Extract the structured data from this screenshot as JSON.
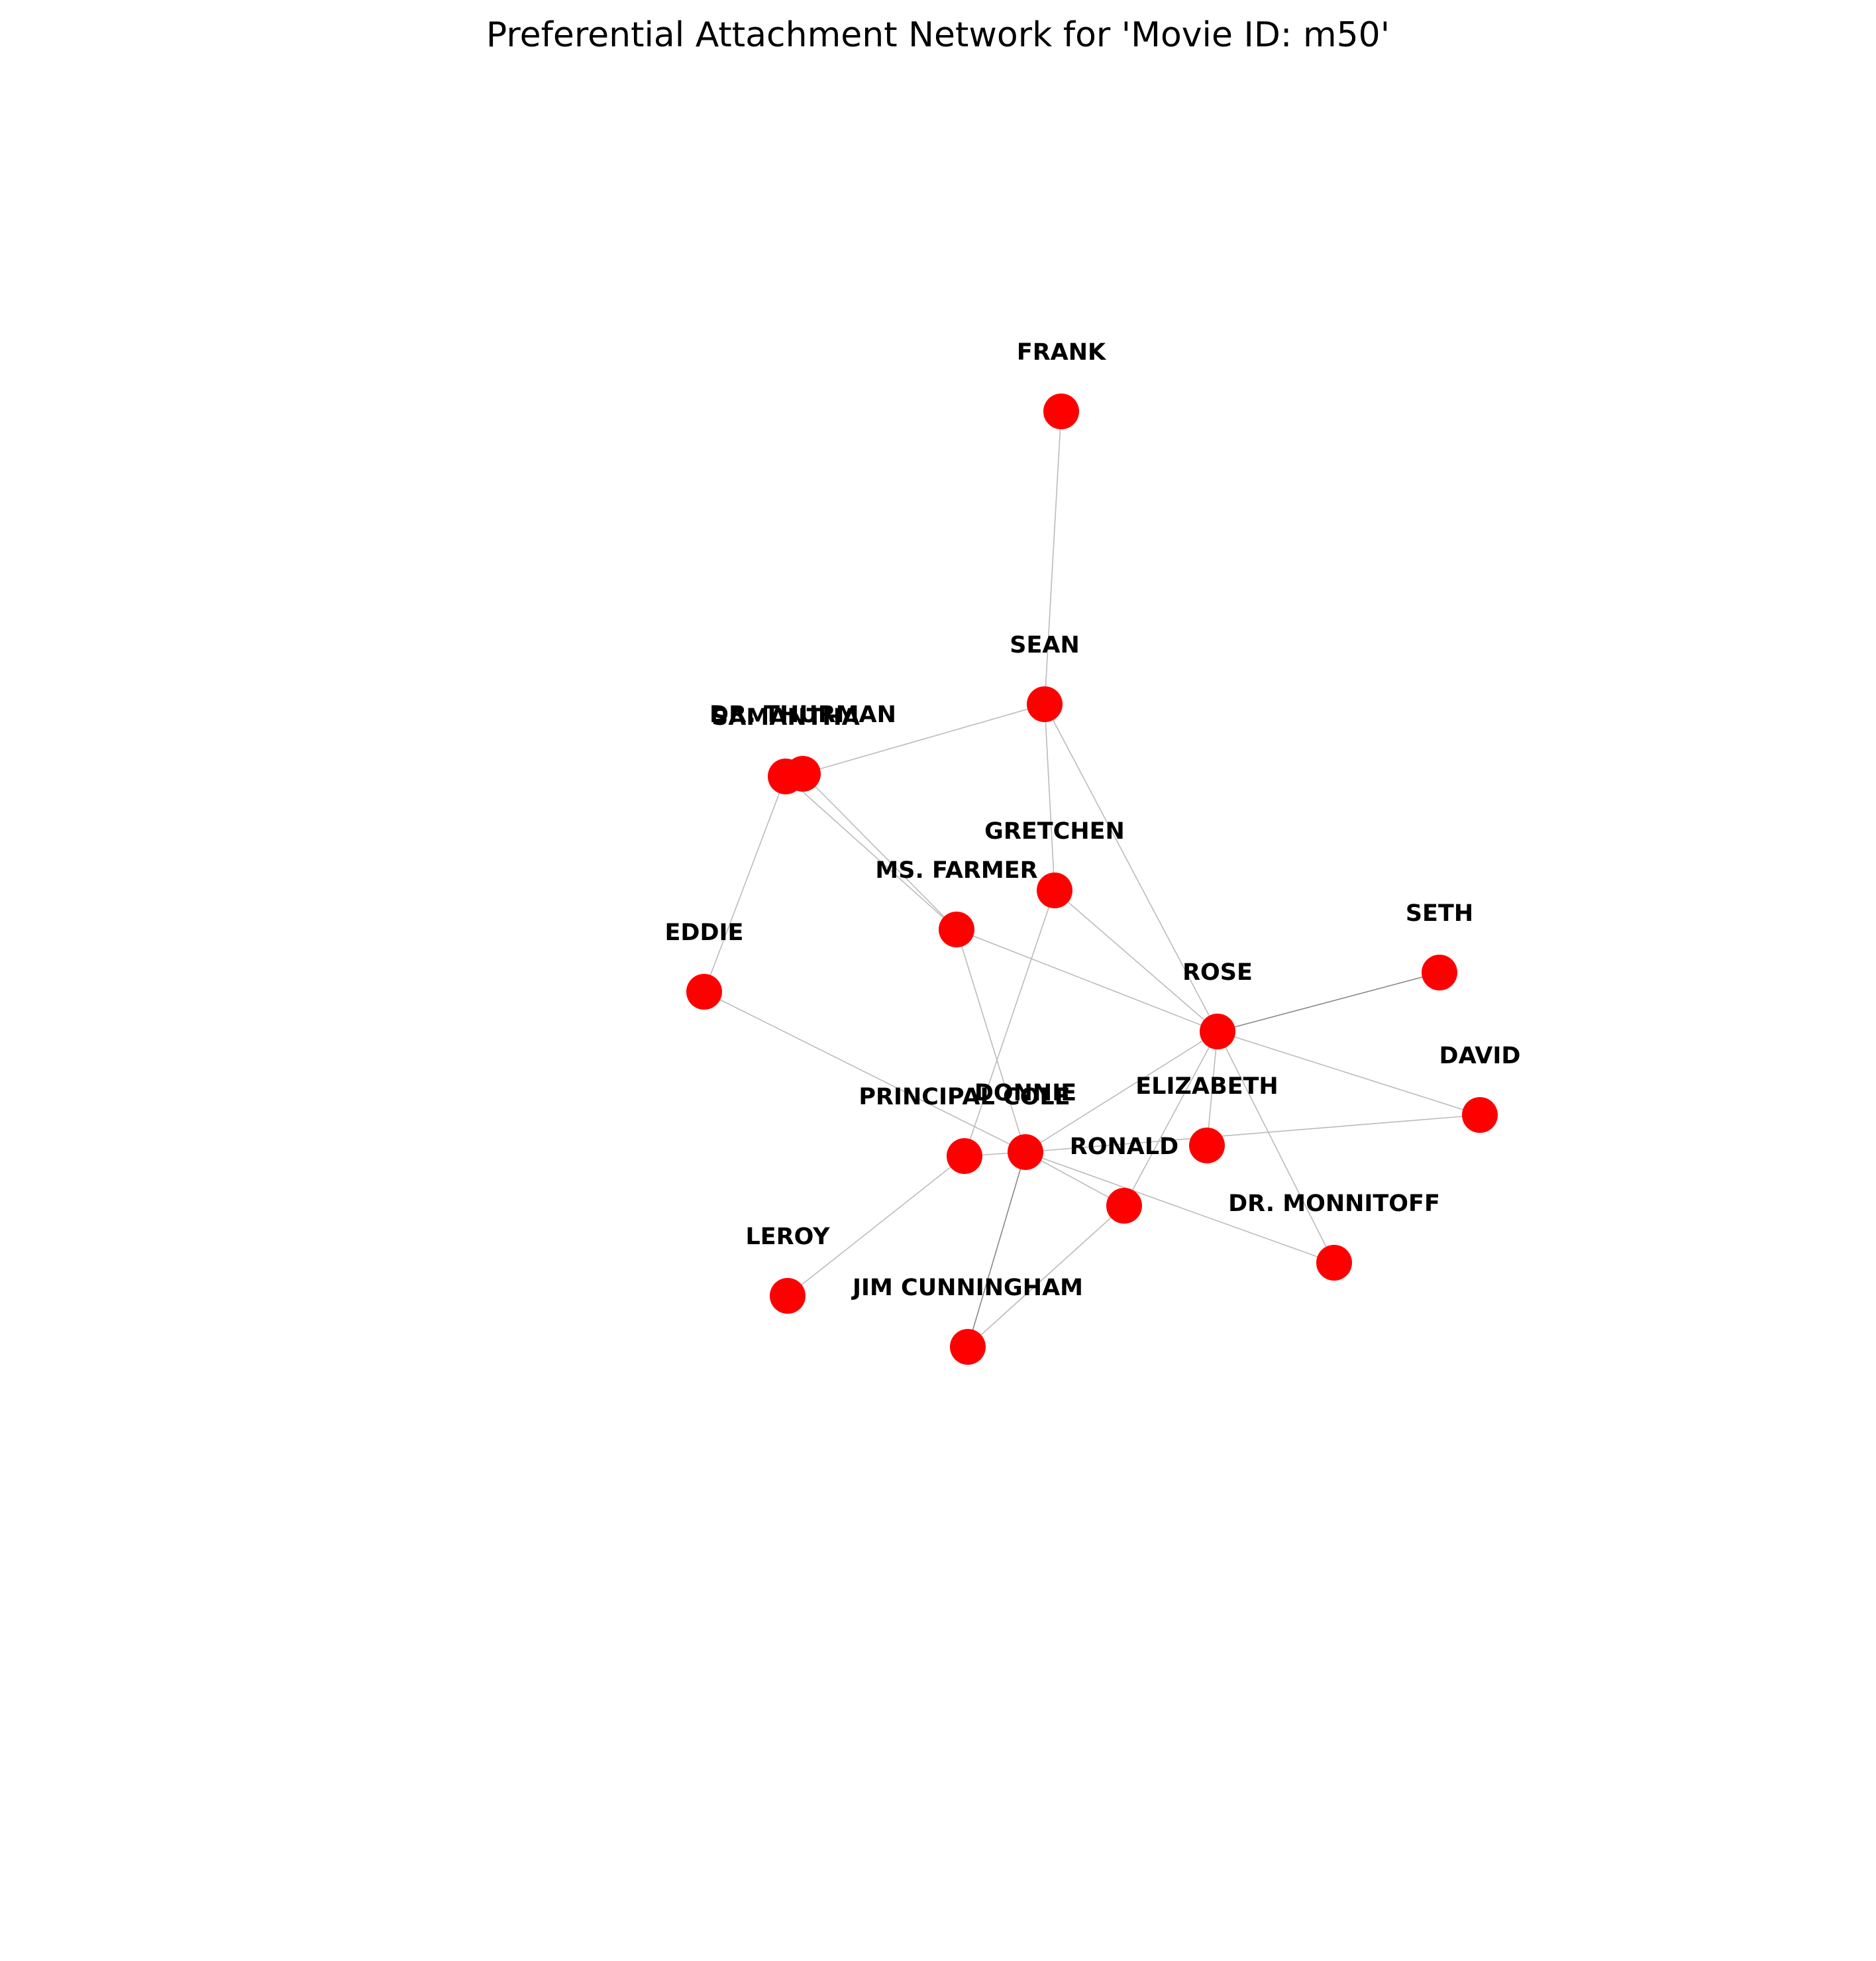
{
  "title": "Preferential Attachment Network for 'Movie ID: m50'",
  "colors": {
    "node": "#ff0000",
    "edge": "#bbbbbb",
    "edge_strong": "#888888",
    "label": "#000000",
    "background": "#ffffff"
  },
  "nodes": [
    {
      "id": "FRANK",
      "label": "FRANK"
    },
    {
      "id": "SEAN",
      "label": "SEAN"
    },
    {
      "id": "DR. THURMAN",
      "label": "DR. THURMAN"
    },
    {
      "id": "SAMANTHA",
      "label": "SAMANTHA"
    },
    {
      "id": "GRETCHEN",
      "label": "GRETCHEN"
    },
    {
      "id": "MS. FARMER",
      "label": "MS. FARMER"
    },
    {
      "id": "EDDIE",
      "label": "EDDIE"
    },
    {
      "id": "SETH",
      "label": "SETH"
    },
    {
      "id": "ROSE",
      "label": "ROSE"
    },
    {
      "id": "DAVID",
      "label": "DAVID"
    },
    {
      "id": "ELIZABETH",
      "label": "ELIZABETH"
    },
    {
      "id": "DONNIE",
      "label": "DONNIE"
    },
    {
      "id": "PRINCIPAL COLE",
      "label": "PRINCIPAL COLE"
    },
    {
      "id": "RONALD",
      "label": "RONALD"
    },
    {
      "id": "DR. MONNITOFF",
      "label": "DR. MONNITOFF"
    },
    {
      "id": "LEROY",
      "label": "LEROY"
    },
    {
      "id": "JIM CUNNINGHAM",
      "label": "JIM CUNNINGHAM"
    }
  ],
  "edges": [
    {
      "source": "FRANK",
      "target": "SEAN"
    },
    {
      "source": "SEAN",
      "target": "DR. THURMAN"
    },
    {
      "source": "SEAN",
      "target": "GRETCHEN"
    },
    {
      "source": "SEAN",
      "target": "ROSE"
    },
    {
      "source": "DR. THURMAN",
      "target": "MS. FARMER"
    },
    {
      "source": "SAMANTHA",
      "target": "MS. FARMER"
    },
    {
      "source": "SAMANTHA",
      "target": "EDDIE"
    },
    {
      "source": "GRETCHEN",
      "target": "ROSE"
    },
    {
      "source": "GRETCHEN",
      "target": "PRINCIPAL COLE"
    },
    {
      "source": "MS. FARMER",
      "target": "ROSE"
    },
    {
      "source": "MS. FARMER",
      "target": "DONNIE"
    },
    {
      "source": "EDDIE",
      "target": "DONNIE"
    },
    {
      "source": "ROSE",
      "target": "SETH",
      "strong": true
    },
    {
      "source": "ROSE",
      "target": "DAVID"
    },
    {
      "source": "ROSE",
      "target": "ELIZABETH"
    },
    {
      "source": "ROSE",
      "target": "DONNIE"
    },
    {
      "source": "ROSE",
      "target": "RONALD"
    },
    {
      "source": "ROSE",
      "target": "DR. MONNITOFF"
    },
    {
      "source": "DAVID",
      "target": "DONNIE"
    },
    {
      "source": "DONNIE",
      "target": "PRINCIPAL COLE"
    },
    {
      "source": "DONNIE",
      "target": "RONALD"
    },
    {
      "source": "DONNIE",
      "target": "DR. MONNITOFF"
    },
    {
      "source": "DONNIE",
      "target": "JIM CUNNINGHAM",
      "strong": true
    },
    {
      "source": "PRINCIPAL COLE",
      "target": "LEROY"
    },
    {
      "source": "RONALD",
      "target": "JIM CUNNINGHAM"
    }
  ]
}
